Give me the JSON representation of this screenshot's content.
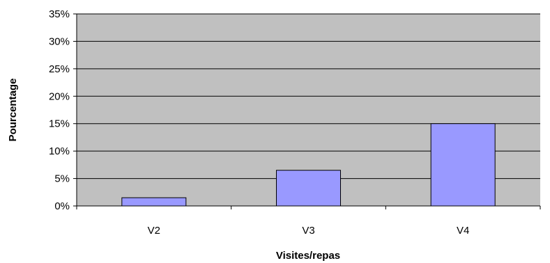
{
  "chart_data": {
    "type": "bar",
    "title": "",
    "xlabel": "Visites/repas",
    "ylabel": "Pourcentage",
    "categories": [
      "V2",
      "V3",
      "V4"
    ],
    "values": [
      1.5,
      6.5,
      15
    ],
    "ylim": [
      0,
      35
    ],
    "yticks": [
      0,
      5,
      10,
      15,
      20,
      25,
      30,
      35
    ],
    "ytick_labels": [
      "0%",
      "5%",
      "10%",
      "15%",
      "20%",
      "25%",
      "30%",
      "35%"
    ],
    "grid": true,
    "legend": "none",
    "colors": {
      "plot_background": "#c0c0c0",
      "bar_fill": "#9999ff",
      "bar_stroke": "#000000",
      "gridline": "#000000"
    }
  }
}
